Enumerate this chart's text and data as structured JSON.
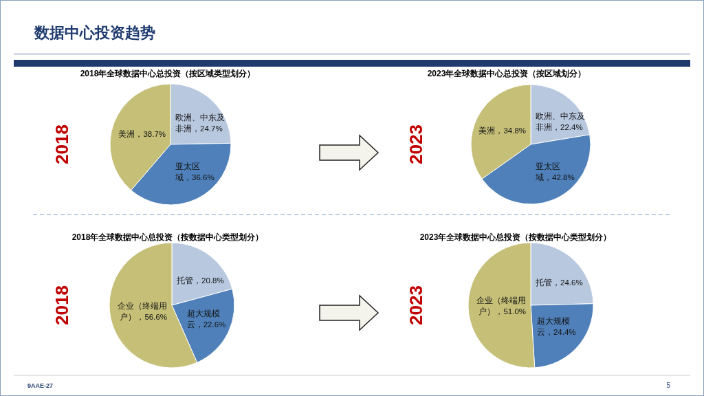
{
  "chart_data": [
    {
      "type": "other",
      "title": "数据中心投资趋势",
      "annotations": [
        "9AAE-27",
        "5"
      ]
    },
    {
      "type": "pie",
      "title": "2018年全球数据中心总投资（按区域类型划分）",
      "annotations": [
        "2018"
      ],
      "categories": [
        "欧洲、中东及非洲",
        "亚太区域",
        "美洲"
      ],
      "values": [
        24.7,
        36.6,
        38.7
      ],
      "value_labels": [
        "24.7%",
        "36.6%",
        "38.7%"
      ],
      "colors": [
        "#b8c8df",
        "#4f80b9",
        "#c6bf78"
      ]
    },
    {
      "type": "pie",
      "title": "2023年全球数据中心总投资（按区域划分）",
      "annotations": [
        "2023"
      ],
      "categories": [
        "欧洲、中东及非洲",
        "亚太区域",
        "美洲"
      ],
      "values": [
        22.4,
        42.8,
        34.8
      ],
      "value_labels": [
        "22.4%",
        "42.8%",
        "34.8%"
      ],
      "colors": [
        "#b8c8df",
        "#4f80b9",
        "#c6bf78"
      ]
    },
    {
      "type": "pie",
      "title": "2018年全球数据中心总投资（按数据中心类型划分）",
      "annotations": [
        "2018"
      ],
      "categories": [
        "托管",
        "超大规模云",
        "企业（终端用户）"
      ],
      "values": [
        20.8,
        22.6,
        56.6
      ],
      "value_labels": [
        "20.8%",
        "22.6%",
        "56.6%"
      ],
      "colors": [
        "#b8c8df",
        "#4f80b9",
        "#c6bf78"
      ]
    },
    {
      "type": "pie",
      "title": "2023年全球数据中心总投资（按数据中心类型划分）",
      "annotations": [
        "2023"
      ],
      "categories": [
        "托管",
        "超大规模云",
        "企业（终端用户）"
      ],
      "values": [
        24.6,
        24.4,
        51.0
      ],
      "value_labels": [
        "24.6%",
        "24.4%",
        "51.0%"
      ],
      "colors": [
        "#b8c8df",
        "#4f80b9",
        "#c6bf78"
      ]
    }
  ]
}
